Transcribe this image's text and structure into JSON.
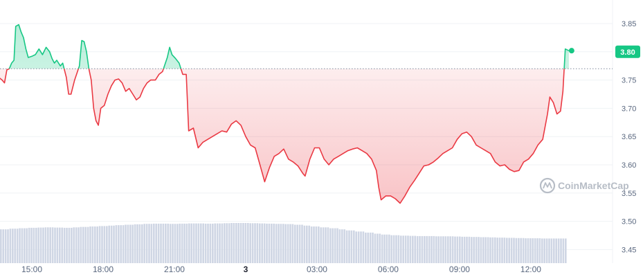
{
  "chart_data": {
    "type": "line",
    "title": "",
    "xlabel": "",
    "ylabel": "",
    "x_ticks": [
      {
        "label": "15:00",
        "t": 1.5
      },
      {
        "label": "18:00",
        "t": 4.5
      },
      {
        "label": "21:00",
        "t": 7.5
      },
      {
        "label": "3",
        "t": 10.5,
        "bold": true
      },
      {
        "label": "03:00",
        "t": 13.5
      },
      {
        "label": "06:00",
        "t": 16.5
      },
      {
        "label": "09:00",
        "t": 19.5
      },
      {
        "label": "12:00",
        "t": 22.5
      }
    ],
    "y_ticks": [
      "3.85",
      "3.80",
      "3.75",
      "3.70",
      "3.65",
      "3.60",
      "3.55",
      "3.50",
      "3.45"
    ],
    "ylim": [
      3.4325,
      3.8895
    ],
    "baseline": 3.77,
    "last_price_label": "3.80",
    "colors": {
      "up": "#16c784",
      "down": "#ea3943",
      "volume": "#cfd6e4",
      "grid": "#eff2f5",
      "baseline": "#808a9d"
    },
    "watermark": "CoinMarketCap",
    "series": [
      {
        "values": [
          [
            0.0,
            3.77
          ],
          [
            0.1,
            3.755
          ],
          [
            0.25,
            3.75
          ],
          [
            0.35,
            3.745
          ],
          [
            0.45,
            3.768
          ],
          [
            0.55,
            3.77
          ],
          [
            0.65,
            3.78
          ],
          [
            0.75,
            3.785
          ],
          [
            0.82,
            3.845
          ],
          [
            0.95,
            3.848
          ],
          [
            1.05,
            3.835
          ],
          [
            1.15,
            3.825
          ],
          [
            1.25,
            3.805
          ],
          [
            1.35,
            3.79
          ],
          [
            1.5,
            3.792
          ],
          [
            1.65,
            3.795
          ],
          [
            1.8,
            3.805
          ],
          [
            1.95,
            3.795
          ],
          [
            2.1,
            3.808
          ],
          [
            2.25,
            3.8
          ],
          [
            2.35,
            3.788
          ],
          [
            2.45,
            3.78
          ],
          [
            2.55,
            3.785
          ],
          [
            2.7,
            3.775
          ],
          [
            2.8,
            3.78
          ],
          [
            2.95,
            3.755
          ],
          [
            3.05,
            3.725
          ],
          [
            3.15,
            3.725
          ],
          [
            3.3,
            3.75
          ],
          [
            3.5,
            3.775
          ],
          [
            3.6,
            3.82
          ],
          [
            3.7,
            3.818
          ],
          [
            3.8,
            3.8
          ],
          [
            3.9,
            3.77
          ],
          [
            4.0,
            3.75
          ],
          [
            4.1,
            3.7
          ],
          [
            4.2,
            3.678
          ],
          [
            4.3,
            3.67
          ],
          [
            4.4,
            3.7
          ],
          [
            4.55,
            3.705
          ],
          [
            4.7,
            3.725
          ],
          [
            4.85,
            3.74
          ],
          [
            5.0,
            3.75
          ],
          [
            5.15,
            3.752
          ],
          [
            5.3,
            3.745
          ],
          [
            5.45,
            3.73
          ],
          [
            5.6,
            3.735
          ],
          [
            5.75,
            3.725
          ],
          [
            5.9,
            3.715
          ],
          [
            6.05,
            3.72
          ],
          [
            6.2,
            3.735
          ],
          [
            6.35,
            3.745
          ],
          [
            6.5,
            3.75
          ],
          [
            6.7,
            3.75
          ],
          [
            6.85,
            3.76
          ],
          [
            7.0,
            3.765
          ],
          [
            7.2,
            3.79
          ],
          [
            7.3,
            3.808
          ],
          [
            7.4,
            3.795
          ],
          [
            7.55,
            3.788
          ],
          [
            7.7,
            3.78
          ],
          [
            7.85,
            3.76
          ],
          [
            8.0,
            3.76
          ],
          [
            8.1,
            3.66
          ],
          [
            8.3,
            3.665
          ],
          [
            8.5,
            3.63
          ],
          [
            8.7,
            3.64
          ],
          [
            8.9,
            3.645
          ],
          [
            9.1,
            3.65
          ],
          [
            9.3,
            3.655
          ],
          [
            9.5,
            3.66
          ],
          [
            9.7,
            3.658
          ],
          [
            9.9,
            3.672
          ],
          [
            10.1,
            3.678
          ],
          [
            10.3,
            3.67
          ],
          [
            10.5,
            3.65
          ],
          [
            10.7,
            3.635
          ],
          [
            10.9,
            3.63
          ],
          [
            11.1,
            3.6
          ],
          [
            11.3,
            3.57
          ],
          [
            11.5,
            3.595
          ],
          [
            11.7,
            3.615
          ],
          [
            11.9,
            3.62
          ],
          [
            12.1,
            3.628
          ],
          [
            12.3,
            3.61
          ],
          [
            12.5,
            3.605
          ],
          [
            12.7,
            3.598
          ],
          [
            12.9,
            3.585
          ],
          [
            13.0,
            3.58
          ],
          [
            13.2,
            3.61
          ],
          [
            13.4,
            3.63
          ],
          [
            13.6,
            3.63
          ],
          [
            13.8,
            3.61
          ],
          [
            14.0,
            3.6
          ],
          [
            14.2,
            3.61
          ],
          [
            14.4,
            3.615
          ],
          [
            14.6,
            3.62
          ],
          [
            14.8,
            3.625
          ],
          [
            15.0,
            3.628
          ],
          [
            15.2,
            3.63
          ],
          [
            15.4,
            3.625
          ],
          [
            15.6,
            3.62
          ],
          [
            15.8,
            3.61
          ],
          [
            16.0,
            3.59
          ],
          [
            16.1,
            3.56
          ],
          [
            16.2,
            3.538
          ],
          [
            16.4,
            3.545
          ],
          [
            16.6,
            3.545
          ],
          [
            16.8,
            3.54
          ],
          [
            17.0,
            3.532
          ],
          [
            17.2,
            3.545
          ],
          [
            17.4,
            3.56
          ],
          [
            17.6,
            3.572
          ],
          [
            17.8,
            3.585
          ],
          [
            18.0,
            3.598
          ],
          [
            18.2,
            3.6
          ],
          [
            18.4,
            3.605
          ],
          [
            18.6,
            3.612
          ],
          [
            18.8,
            3.62
          ],
          [
            19.0,
            3.625
          ],
          [
            19.2,
            3.63
          ],
          [
            19.4,
            3.645
          ],
          [
            19.6,
            3.655
          ],
          [
            19.8,
            3.658
          ],
          [
            20.0,
            3.65
          ],
          [
            20.2,
            3.635
          ],
          [
            20.4,
            3.63
          ],
          [
            20.6,
            3.625
          ],
          [
            20.8,
            3.62
          ],
          [
            21.0,
            3.605
          ],
          [
            21.2,
            3.598
          ],
          [
            21.4,
            3.6
          ],
          [
            21.6,
            3.592
          ],
          [
            21.8,
            3.588
          ],
          [
            22.0,
            3.59
          ],
          [
            22.2,
            3.605
          ],
          [
            22.4,
            3.61
          ],
          [
            22.6,
            3.62
          ],
          [
            22.8,
            3.635
          ],
          [
            23.0,
            3.645
          ],
          [
            23.2,
            3.69
          ],
          [
            23.3,
            3.72
          ],
          [
            23.45,
            3.71
          ],
          [
            23.6,
            3.69
          ],
          [
            23.75,
            3.695
          ],
          [
            23.85,
            3.73
          ],
          [
            23.95,
            3.805
          ],
          [
            24.1,
            3.802
          ]
        ]
      },
      {
        "type": "bar",
        "values": [
          0.00155,
          0.00158,
          0.0016,
          0.00162,
          0.00163,
          0.00164,
          0.00163,
          0.00162,
          0.00164,
          0.00166,
          0.00168,
          0.0017,
          0.00172,
          0.00174,
          0.00176,
          0.00178,
          0.0018,
          0.00181,
          0.00181,
          0.0018,
          0.00181,
          0.00182,
          0.00182,
          0.00181,
          0.00182,
          0.00183,
          0.00184,
          0.00184,
          0.00183,
          0.00182,
          0.00181,
          0.0018,
          0.00179,
          0.00176,
          0.00172,
          0.00168,
          0.00164,
          0.0016,
          0.00155,
          0.0015,
          0.00145,
          0.0014,
          0.00135,
          0.00131,
          0.00128,
          0.00126,
          0.00125,
          0.00124,
          0.00124,
          0.00123,
          0.00123,
          0.00122,
          0.00121,
          0.0012,
          0.00119,
          0.00118,
          0.00117,
          0.00116,
          0.00115,
          0.00114,
          0.00114,
          0.00113,
          0.00113,
          0.00113
        ]
      }
    ]
  }
}
